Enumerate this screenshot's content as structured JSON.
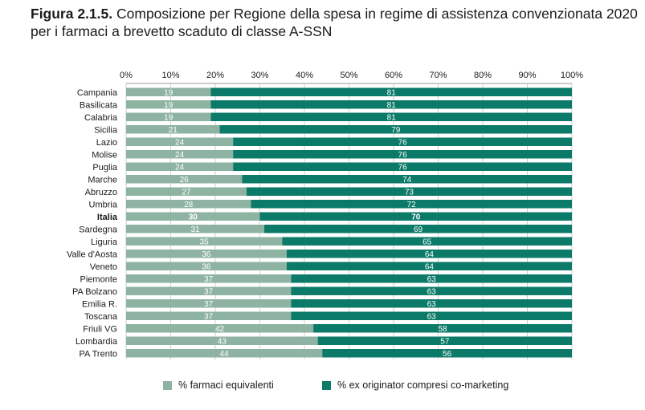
{
  "figure": {
    "label": "Figura 2.1.5.",
    "title": "Composizione per Regione della spesa in regime di assistenza convenzionata 2020 per i farmaci a brevetto scaduto di classe A-SSN"
  },
  "colors": {
    "equivalenti": "#8fb3a2",
    "originator": "#0b7a68",
    "grid": "#cfcfcf",
    "text": "#1a1a1a"
  },
  "chart_data": {
    "type": "bar",
    "orientation": "horizontal",
    "stacked": true,
    "x_ticks": [
      "0%",
      "10%",
      "20%",
      "30%",
      "40%",
      "50%",
      "60%",
      "70%",
      "80%",
      "90%",
      "100%"
    ],
    "xlim": [
      0,
      100
    ],
    "axis_position": "top",
    "grid": true,
    "legend_position": "bottom",
    "categories": [
      "Campania",
      "Basilicata",
      "Calabria",
      "Sicilia",
      "Lazio",
      "Molise",
      "Puglia",
      "Marche",
      "Abruzzo",
      "Umbria",
      "Italia",
      "Sardegna",
      "Liguria",
      "Valle d'Aosta",
      "Veneto",
      "Piemonte",
      "PA Bolzano",
      "Emilia R.",
      "Toscana",
      "Friuli VG",
      "Lombardia",
      "PA Trento"
    ],
    "bold_category": "Italia",
    "series": [
      {
        "name": "% farmaci equivalenti",
        "values": [
          19,
          19,
          19,
          21,
          24,
          24,
          24,
          26,
          27,
          28,
          30,
          31,
          35,
          36,
          36,
          37,
          37,
          37,
          37,
          42,
          43,
          44
        ]
      },
      {
        "name": "% ex originator compresi co-marketing",
        "values": [
          81,
          81,
          81,
          79,
          76,
          76,
          76,
          74,
          73,
          72,
          70,
          69,
          65,
          64,
          64,
          63,
          63,
          63,
          63,
          58,
          57,
          56
        ]
      }
    ]
  }
}
